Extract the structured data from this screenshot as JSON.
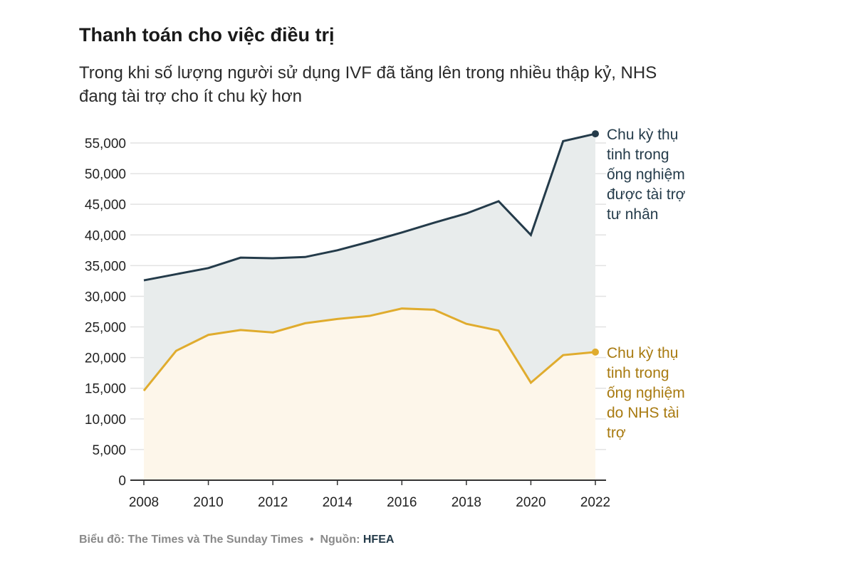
{
  "title": "Thanh toán cho việc điều trị",
  "subtitle": "Trong khi số lượng người sử dụng IVF đã tăng lên trong nhiều thập kỷ, NHS đang tài trợ cho ít chu kỳ hơn",
  "footer": {
    "chart_label": "Biểu đồ: The Times và The Sunday Times",
    "separator": "•",
    "source_label": "Nguồn:",
    "source": "HFEA"
  },
  "colors": {
    "private": "#243b4a",
    "private_fill": "#e8ecec",
    "nhs": "#e0ac2e",
    "nhs_fill": "#fdf6ea",
    "nhs_label": "#a87a10",
    "grid": "#e2e2e2"
  },
  "chart_data": {
    "type": "area",
    "x": [
      2008,
      2009,
      2010,
      2011,
      2012,
      2013,
      2014,
      2015,
      2016,
      2017,
      2018,
      2019,
      2020,
      2021,
      2022
    ],
    "xticks": [
      "2008",
      "2010",
      "2012",
      "2014",
      "2016",
      "2018",
      "2020",
      "2022"
    ],
    "yticks": [
      "0",
      "5,000",
      "10,000",
      "15,000",
      "20,000",
      "25,000",
      "30,000",
      "35,000",
      "40,000",
      "45,000",
      "50,000",
      "55,000"
    ],
    "ylim": [
      0,
      57000
    ],
    "grid": true,
    "series": [
      {
        "name": "Chu kỳ thụ tinh trong ống nghiệm được tài trợ tư nhân",
        "label_lines": [
          "Chu kỳ thụ",
          "tinh trong",
          "ống nghiệm",
          "được tài trợ",
          "tư nhân"
        ],
        "values": [
          32600,
          33600,
          34600,
          36300,
          36200,
          36400,
          37500,
          38900,
          40400,
          42000,
          43500,
          45500,
          40000,
          55300,
          56500
        ]
      },
      {
        "name": "Chu kỳ thụ tinh trong ống nghiệm do NHS tài trợ",
        "label_lines": [
          "Chu kỳ thụ",
          "tinh trong",
          "ống nghiệm",
          "do NHS tài",
          "trợ"
        ],
        "values": [
          14600,
          21100,
          23700,
          24500,
          24100,
          25600,
          26300,
          26800,
          28000,
          27800,
          25500,
          24400,
          15900,
          20400,
          20900
        ]
      }
    ]
  }
}
